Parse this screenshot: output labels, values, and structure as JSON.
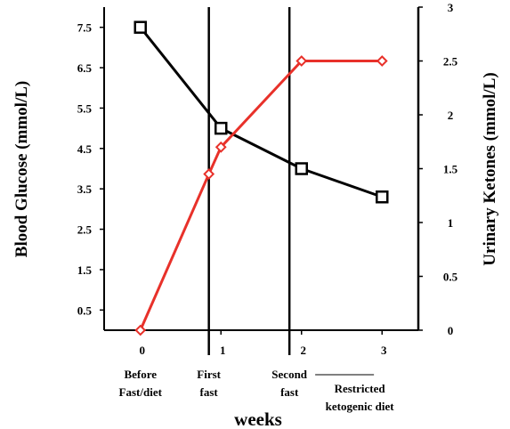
{
  "chart_data": {
    "type": "line",
    "xlabel": "weeks",
    "ylabel_left": "Blood Glucose (mmol/L)",
    "ylabel_right": "Urinary Ketones (mmol/L)",
    "x_ticks": [
      "0",
      "1",
      "2",
      "3"
    ],
    "y_left_ticks": [
      "0.5",
      "1.5",
      "2.5",
      "3.5",
      "4.5",
      "5.5",
      "6.5",
      "7.5"
    ],
    "y_right_ticks": [
      "0",
      "0.5",
      "1",
      "1.5",
      "2",
      "2.5",
      "3"
    ],
    "xlim": [
      -0.45,
      3.45
    ],
    "ylim_left": [
      0,
      8
    ],
    "ylim_right": [
      0,
      3
    ],
    "phase_markers": [
      0.85,
      1.85
    ],
    "phase_labels": [
      {
        "id": "before",
        "x": 0,
        "lines": [
          "Before",
          "Fast/diet"
        ]
      },
      {
        "id": "first",
        "x": 0.85,
        "lines": [
          "First",
          "fast"
        ]
      },
      {
        "id": "second",
        "x": 1.85,
        "lines": [
          "Second",
          "fast"
        ]
      },
      {
        "id": "restricted",
        "x": 2.7,
        "lines": [
          "Restricted",
          "ketogenic diet"
        ],
        "rule": true
      }
    ],
    "series": [
      {
        "key": "glucose",
        "axis": "left",
        "color": "#000000",
        "marker": "square",
        "x": [
          0,
          1,
          2,
          3
        ],
        "values": [
          7.5,
          5.0,
          4.0,
          3.3
        ]
      },
      {
        "key": "ketones",
        "axis": "right",
        "color": "#e8312a",
        "marker": "diamond",
        "x": [
          0,
          0.85,
          1,
          2,
          3
        ],
        "values": [
          0,
          1.45,
          1.7,
          2.5,
          2.5
        ]
      }
    ]
  }
}
